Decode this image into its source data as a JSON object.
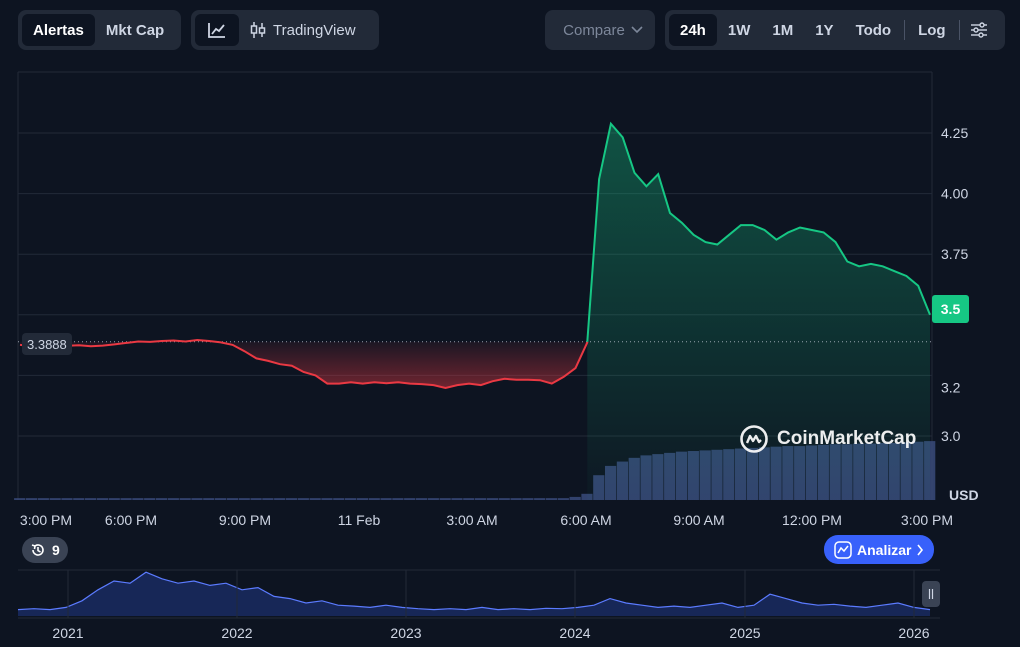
{
  "toolbar": {
    "left_group": [
      {
        "label": "Alertas",
        "active": true
      },
      {
        "label": "Mkt Cap",
        "active": false
      }
    ],
    "tradingview_label": "TradingView",
    "compare_label": "Compare",
    "ranges": [
      {
        "label": "24h",
        "active": true
      },
      {
        "label": "1W",
        "active": false
      },
      {
        "label": "1M",
        "active": false
      },
      {
        "label": "1Y",
        "active": false
      },
      {
        "label": "Todo",
        "active": false
      }
    ],
    "log_label": "Log"
  },
  "reference_price": "3.3888",
  "last_price": "3.5",
  "currency_label": "USD",
  "history_count": "9",
  "analyze_label": "Analizar",
  "watermark": "CoinMarketCap",
  "colors": {
    "up": "#16c784",
    "down": "#ea3943",
    "volume": "#3a4a7a",
    "accent": "#3861fb"
  },
  "chart_data": {
    "type": "line",
    "series": [
      {
        "values": [
          3.376,
          3.37,
          3.372,
          3.368,
          3.372,
          3.374,
          3.37,
          3.373,
          3.378,
          3.384,
          3.39,
          3.388,
          3.392,
          3.394,
          3.39,
          3.396,
          3.392,
          3.386,
          3.376,
          3.35,
          3.32,
          3.31,
          3.296,
          3.29,
          3.264,
          3.25,
          3.216,
          3.216,
          3.222,
          3.216,
          3.222,
          3.218,
          3.222,
          3.216,
          3.214,
          3.21,
          3.198,
          3.21,
          3.216,
          3.21,
          3.226,
          3.236,
          3.232,
          3.232,
          3.23,
          3.216,
          3.244,
          3.28,
          3.386,
          4.06,
          4.288,
          4.232,
          4.086,
          4.03,
          4.08,
          3.92,
          3.88,
          3.83,
          3.8,
          3.79,
          3.83,
          3.87,
          3.87,
          3.85,
          3.81,
          3.84,
          3.86,
          3.85,
          3.84,
          3.8,
          3.72,
          3.7,
          3.71,
          3.7,
          3.68,
          3.66,
          3.62,
          3.5
        ]
      }
    ],
    "x_ticks": [
      "3:00 PM",
      "6:00 PM",
      "9:00 PM",
      "11 Feb",
      "3:00 AM",
      "6:00 AM",
      "9:00 AM",
      "12:00 PM",
      "3:00 PM"
    ],
    "y_ticks": [
      "3.0",
      "3.2",
      "3.5",
      "3.75",
      "4.00",
      "4.25"
    ],
    "ylim": [
      2.75,
      4.5
    ],
    "reference_value": 3.3888,
    "last_value": 3.5,
    "volume": [
      0.03,
      0.03,
      0.03,
      0.03,
      0.03,
      0.03,
      0.03,
      0.03,
      0.03,
      0.03,
      0.03,
      0.03,
      0.03,
      0.03,
      0.03,
      0.03,
      0.03,
      0.03,
      0.03,
      0.03,
      0.03,
      0.03,
      0.03,
      0.03,
      0.03,
      0.03,
      0.03,
      0.03,
      0.03,
      0.03,
      0.03,
      0.03,
      0.03,
      0.03,
      0.03,
      0.03,
      0.03,
      0.03,
      0.03,
      0.03,
      0.03,
      0.03,
      0.03,
      0.03,
      0.03,
      0.03,
      0.03,
      0.05,
      0.1,
      0.4,
      0.55,
      0.62,
      0.68,
      0.72,
      0.74,
      0.76,
      0.78,
      0.79,
      0.8,
      0.81,
      0.82,
      0.83,
      0.84,
      0.85,
      0.86,
      0.87,
      0.87,
      0.88,
      0.89,
      0.9,
      0.9,
      0.91,
      0.91,
      0.92,
      0.92,
      0.93,
      0.94,
      0.95
    ],
    "navigator": {
      "x_ticks": [
        "2021",
        "2022",
        "2023",
        "2024",
        "2025",
        "2026"
      ],
      "values": [
        0.1,
        0.12,
        0.1,
        0.15,
        0.3,
        0.55,
        0.75,
        0.7,
        0.95,
        0.8,
        0.7,
        0.75,
        0.65,
        0.7,
        0.55,
        0.6,
        0.4,
        0.35,
        0.25,
        0.3,
        0.2,
        0.18,
        0.15,
        0.2,
        0.15,
        0.12,
        0.1,
        0.12,
        0.1,
        0.15,
        0.1,
        0.12,
        0.1,
        0.13,
        0.12,
        0.15,
        0.2,
        0.35,
        0.25,
        0.2,
        0.15,
        0.18,
        0.15,
        0.2,
        0.25,
        0.15,
        0.2,
        0.45,
        0.35,
        0.25,
        0.2,
        0.22,
        0.18,
        0.15,
        0.2,
        0.25,
        0.15,
        0.1
      ]
    }
  }
}
